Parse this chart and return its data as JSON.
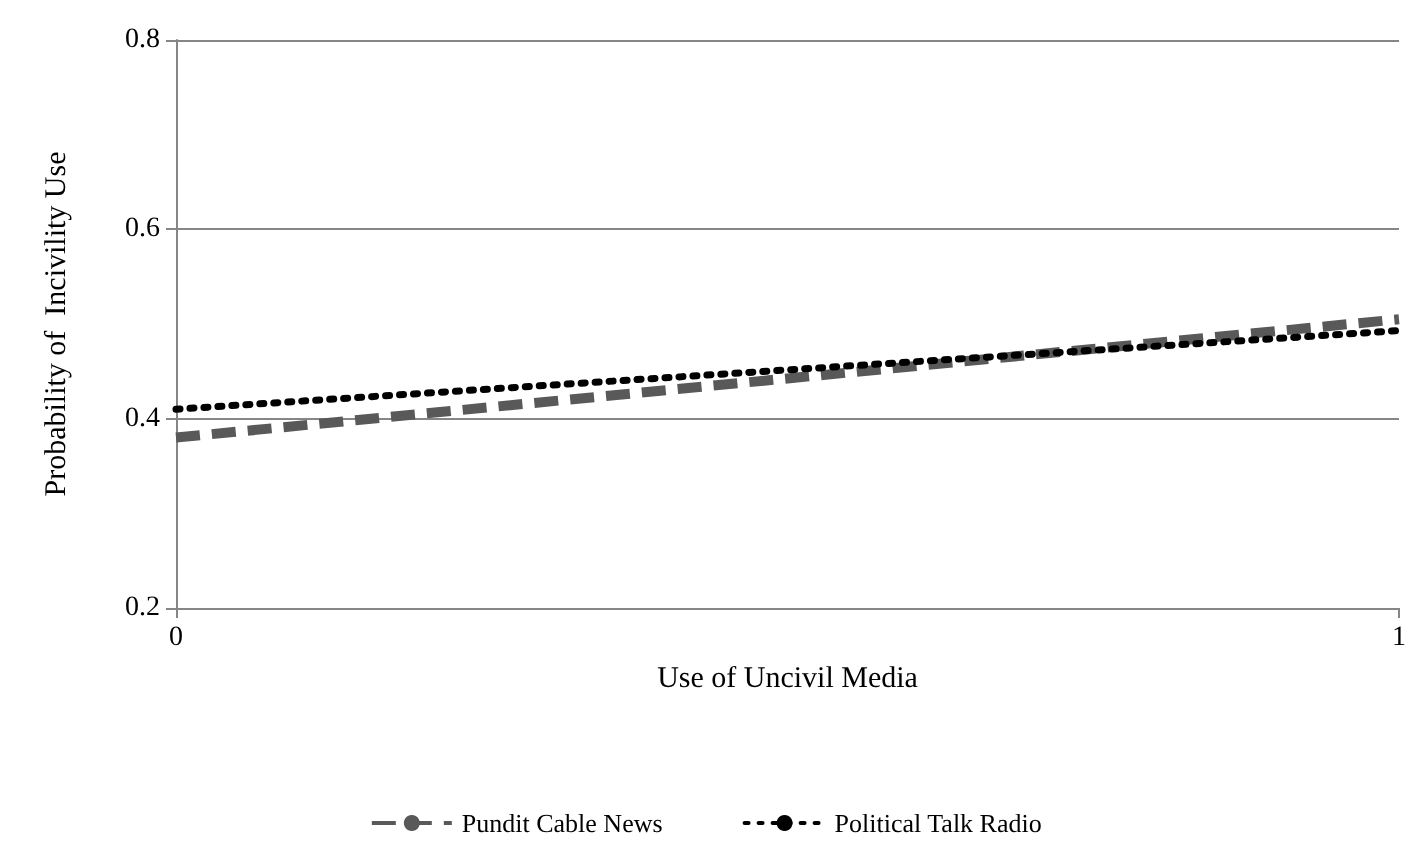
{
  "chart_data": {
    "type": "line",
    "xlabel": "Use of Uncivil Media",
    "ylabel": "Probability of  Incivility Use",
    "x": [
      0,
      1
    ],
    "xlim": [
      0,
      1
    ],
    "xticks": [
      0,
      1
    ],
    "ylim": [
      0.2,
      0.8
    ],
    "yticks": [
      0.2,
      0.4,
      0.6,
      0.8
    ],
    "grid": "y",
    "legend": "bottom",
    "marker": "none",
    "series": [
      {
        "name": "Pundit Cable News",
        "color": "#595959",
        "values": [
          0.38,
          0.505
        ],
        "line_style": "dashed"
      },
      {
        "name": "Political Talk Radio",
        "color": "#000000",
        "values": [
          0.41,
          0.493
        ],
        "line_style": "dotted"
      }
    ]
  }
}
